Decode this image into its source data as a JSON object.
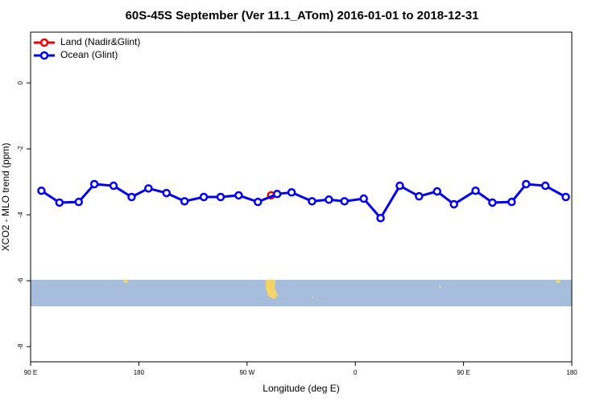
{
  "chart_data": {
    "type": "line",
    "title": "60S-45S September (Ver 11.1_ATom)   2016-01-01 to 2018-12-31",
    "x_label": "Longitude (deg E)",
    "y_label": "XCO2 - MLO trend (ppm)",
    "xlim": [
      90,
      540
    ],
    "xticks": [
      {
        "value": 90,
        "label": "90 E"
      },
      {
        "value": 180,
        "label": "180"
      },
      {
        "value": 270,
        "label": "90 W"
      },
      {
        "value": 360,
        "label": "0"
      },
      {
        "value": 450,
        "label": "90 E"
      },
      {
        "value": 540,
        "label": "180"
      }
    ],
    "ylim": [
      -8.46,
      1.54
    ],
    "yticks": [
      0,
      -2,
      -4,
      -6,
      -8
    ],
    "legend": "top-left",
    "series": [
      {
        "name": "Land (Nadir&Glint)",
        "color": "#ee0000",
        "x": [
          290
        ],
        "values": [
          -3.41
        ]
      },
      {
        "name": "Ocean (Glint)",
        "color": "#0000ee",
        "x": [
          99,
          114,
          130,
          143,
          159,
          174,
          188,
          203,
          218,
          234,
          248,
          263,
          279,
          295,
          307,
          324,
          338,
          351,
          367,
          381,
          397,
          413,
          428,
          442,
          460,
          474,
          490,
          502,
          518,
          535
        ],
        "values": [
          -3.27,
          -3.63,
          -3.61,
          -3.07,
          -3.12,
          -3.46,
          -3.2,
          -3.34,
          -3.59,
          -3.46,
          -3.46,
          -3.41,
          -3.61,
          -3.37,
          -3.32,
          -3.59,
          -3.54,
          -3.59,
          -3.51,
          -4.1,
          -3.12,
          -3.44,
          -3.29,
          -3.68,
          -3.27,
          -3.63,
          -3.61,
          -3.07,
          -3.12,
          -3.46
        ]
      }
    ]
  }
}
